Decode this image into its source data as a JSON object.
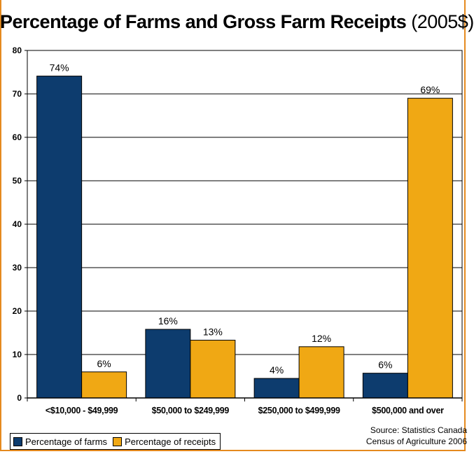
{
  "title": {
    "main": "Percentage of Farms and Gross Farm Receipts",
    "suffix": "(2005$)"
  },
  "colors": {
    "farms": "#0d3c6e",
    "receipts": "#f0a814",
    "frame": "#e58a1f"
  },
  "legend": {
    "farms": "Percentage of farms",
    "receipts": "Percentage of receipts"
  },
  "source": {
    "line1": "Source: Statistics Canada",
    "line2": "Census of Agriculture 2006"
  },
  "chart_data": {
    "type": "bar",
    "categories": [
      "<$10,000 - $49,999",
      "$50,000 to $249,999",
      "$250,000 to $499,999",
      "$500,000 and over"
    ],
    "series": [
      {
        "name": "Percentage of farms",
        "values": [
          74.1,
          15.8,
          4.5,
          5.7
        ],
        "labels": [
          "74%",
          "16%",
          "4%",
          "6%"
        ]
      },
      {
        "name": "Percentage of receipts",
        "values": [
          6.0,
          13.3,
          11.8,
          69.0
        ],
        "labels": [
          "6%",
          "13%",
          "12%",
          "69%"
        ]
      }
    ],
    "ylim": [
      0,
      80
    ],
    "yticks": [
      "0",
      "10",
      "20",
      "30",
      "40",
      "50",
      "60",
      "70",
      "80"
    ],
    "grid": true,
    "legend_position": "bottom-left"
  }
}
